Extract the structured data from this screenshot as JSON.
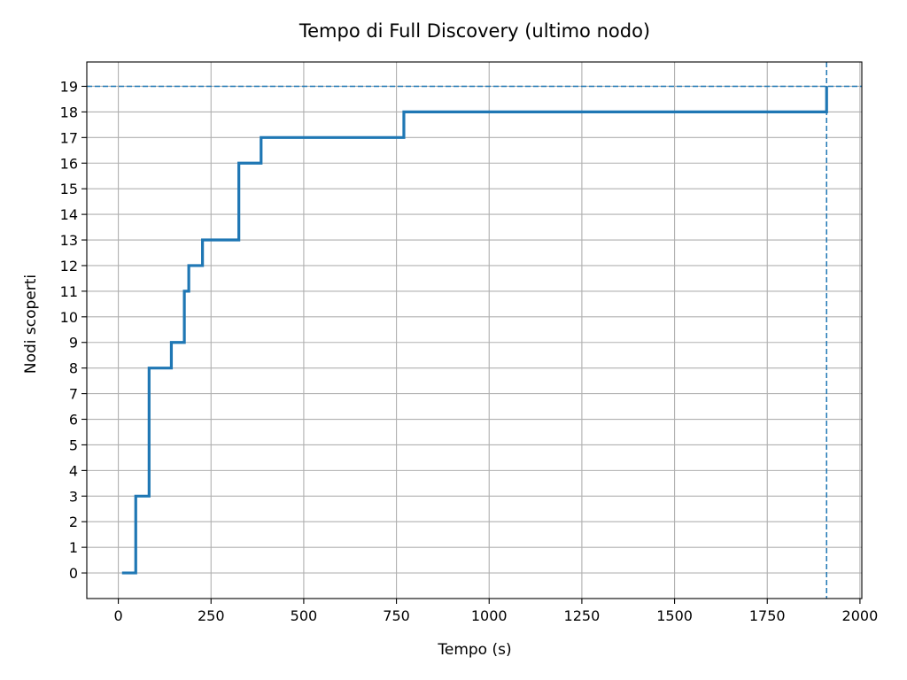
{
  "chart_data": {
    "type": "line",
    "title": "Tempo di Full Discovery (ultimo nodo)",
    "xlabel": "Tempo (s)",
    "ylabel": "Nodi scoperti",
    "xlim": [
      -85,
      2005
    ],
    "ylim": [
      -1,
      19.95
    ],
    "xticks": [
      0,
      250,
      500,
      750,
      1000,
      1250,
      1500,
      1750,
      2000
    ],
    "yticks": [
      0,
      1,
      2,
      3,
      4,
      5,
      6,
      7,
      8,
      9,
      10,
      11,
      12,
      13,
      14,
      15,
      16,
      17,
      18,
      19
    ],
    "grid": true,
    "step": "post",
    "series": [
      {
        "color": "#1f77b4",
        "x": [
          10,
          47,
          83,
          143,
          178,
          190,
          227,
          325,
          385,
          770,
          1910
        ],
        "y": [
          0,
          3,
          8,
          9,
          11,
          12,
          13,
          16,
          17,
          18,
          19
        ]
      }
    ],
    "reference_lines": [
      {
        "orientation": "horizontal",
        "value": 19,
        "color": "#1f77b4",
        "style": "dashed"
      },
      {
        "orientation": "vertical",
        "value": 1910,
        "color": "#1f77b4",
        "style": "dashed"
      }
    ]
  }
}
